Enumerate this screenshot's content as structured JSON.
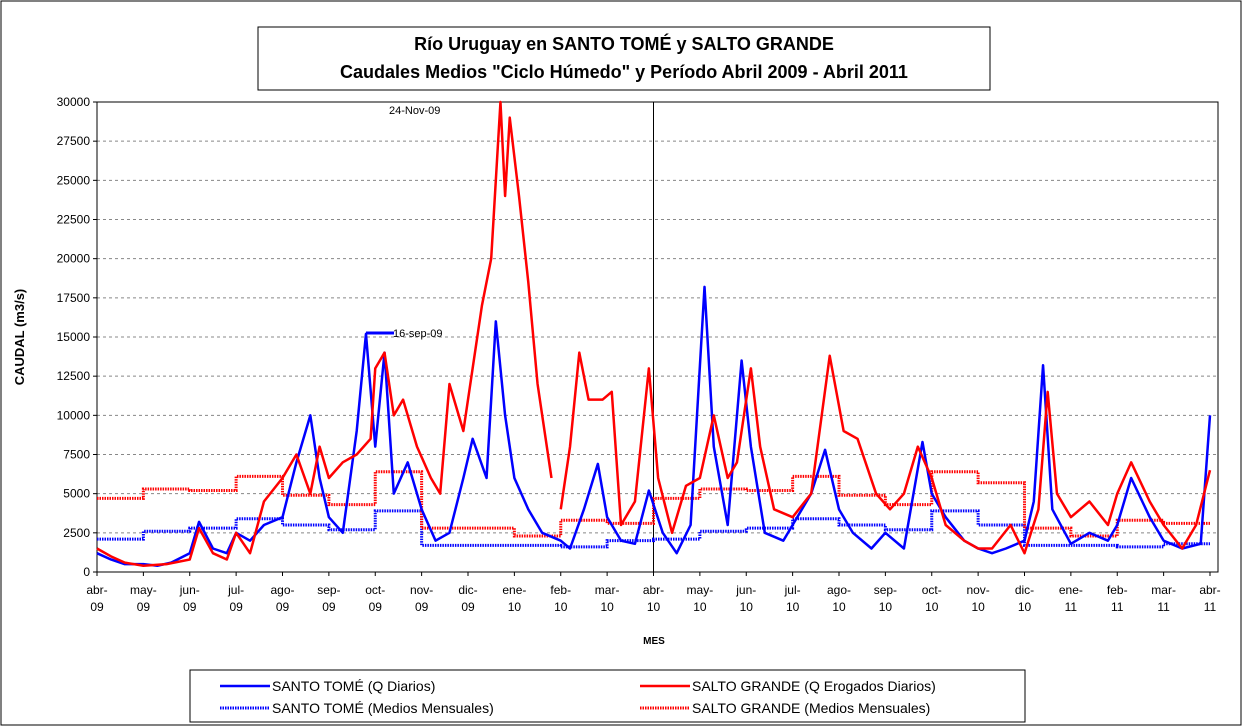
{
  "chart_data": {
    "type": "line",
    "title": "Río Uruguay en SANTO TOMÉ y SALTO GRANDE",
    "subtitle": "Caudales Medios \"Ciclo Húmedo\" y Período Abril 2009 - Abril 2011",
    "y_label": "CAUDAL (m3/s)",
    "x_label": "MES",
    "annotations": [
      "24-Nov-09",
      "16-sep-09"
    ],
    "xlim": [
      0,
      24
    ],
    "xticks": [
      {
        "value": 0,
        "label": "abr-09"
      },
      {
        "value": 1,
        "label": "may-09"
      },
      {
        "value": 2,
        "label": "jun-09"
      },
      {
        "value": 3,
        "label": "jul-09"
      },
      {
        "value": 4,
        "label": "ago-09"
      },
      {
        "value": 5,
        "label": "sep-09"
      },
      {
        "value": 6,
        "label": "oct-09"
      },
      {
        "value": 7,
        "label": "nov-09"
      },
      {
        "value": 8,
        "label": "dic-09"
      },
      {
        "value": 9,
        "label": "ene-10"
      },
      {
        "value": 10,
        "label": "feb-10"
      },
      {
        "value": 11,
        "label": "mar-10"
      },
      {
        "value": 12,
        "label": "abr-10"
      },
      {
        "value": 13,
        "label": "may-10"
      },
      {
        "value": 14,
        "label": "jun-10"
      },
      {
        "value": 15,
        "label": "jul-10"
      },
      {
        "value": 16,
        "label": "ago-10"
      },
      {
        "value": 17,
        "label": "sep-10"
      },
      {
        "value": 18,
        "label": "oct-10"
      },
      {
        "value": 19,
        "label": "nov-10"
      },
      {
        "value": 20,
        "label": "dic-10"
      },
      {
        "value": 21,
        "label": "ene-11"
      },
      {
        "value": 22,
        "label": "feb-11"
      },
      {
        "value": 23,
        "label": "mar-11"
      },
      {
        "value": 24,
        "label": "abr-11"
      }
    ],
    "ylim": [
      0,
      30000
    ],
    "yticks": [
      0,
      2500,
      5000,
      7500,
      10000,
      12500,
      15000,
      17500,
      20000,
      22500,
      25000,
      27500,
      30000
    ],
    "grid": true,
    "series": [
      {
        "name": "SANTO TOMÉ (Q Diarios)",
        "color": "#0000ff",
        "style": "solid",
        "x": [
          0,
          0.3,
          0.6,
          1,
          1.3,
          1.6,
          2,
          2.2,
          2.5,
          2.8,
          3,
          3.3,
          3.6,
          4,
          4.3,
          4.6,
          4.8,
          5,
          5.3,
          5.6,
          5.8,
          6,
          6.2,
          6.4,
          6.7,
          7,
          7.3,
          7.6,
          7.9,
          8.1,
          8.4,
          8.6,
          8.8,
          9,
          9.3,
          9.6,
          10,
          10.2,
          10.5,
          10.8,
          11,
          11.3,
          11.6,
          11.9,
          12.2,
          12.5,
          12.8,
          13.1,
          13.3,
          13.6,
          13.9,
          14.1,
          14.4,
          14.8,
          15.1,
          15.4,
          15.7,
          16,
          16.3,
          16.7,
          17,
          17.4,
          17.8,
          18,
          18.3,
          18.7,
          19,
          19.3,
          19.6,
          20,
          20.2,
          20.4,
          20.6,
          21,
          21.4,
          21.8,
          22,
          22.3,
          22.7,
          23,
          23.4,
          23.8,
          24
        ],
        "values": [
          1200,
          800,
          500,
          500,
          400,
          600,
          1200,
          3200,
          1500,
          1200,
          2500,
          2000,
          3000,
          3500,
          7000,
          10000,
          6000,
          3500,
          2500,
          9000,
          15200,
          8000,
          14000,
          5000,
          7000,
          4000,
          2000,
          2500,
          6000,
          8500,
          6000,
          16000,
          10000,
          6000,
          4000,
          2500,
          2000,
          1500,
          4000,
          6900,
          3500,
          2000,
          1800,
          5200,
          2500,
          1200,
          3000,
          18200,
          8000,
          3000,
          13500,
          8000,
          2500,
          2000,
          3500,
          5000,
          7800,
          4000,
          2500,
          1500,
          2500,
          1500,
          8300,
          5000,
          3500,
          2000,
          1500,
          1200,
          1500,
          2000,
          4500,
          13200,
          4000,
          1800,
          2500,
          2000,
          3000,
          6000,
          3500,
          2000,
          1500,
          1800,
          10000
        ]
      },
      {
        "name": "SALTO GRANDE (Q Erogados Diarios)",
        "color": "#ff0000",
        "style": "solid",
        "x": [
          0,
          0.3,
          0.6,
          1,
          1.5,
          2,
          2.2,
          2.5,
          2.8,
          3,
          3.3,
          3.6,
          4,
          4.3,
          4.6,
          4.8,
          5,
          5.3,
          5.6,
          5.9,
          6,
          6.2,
          6.4,
          6.6,
          6.9,
          7.2,
          7.4,
          7.6,
          7.9,
          8.1,
          8.3,
          8.5,
          8.7,
          8.8,
          8.9,
          9.1,
          9.3,
          9.5,
          9.7,
          9.8,
          9.9,
          10,
          10.2,
          10.4,
          10.6,
          10.9,
          11.1,
          11.3,
          11.6,
          11.9,
          12.1,
          12.4,
          12.7,
          13,
          13.3,
          13.6,
          13.8,
          14.1,
          14.3,
          14.6,
          15,
          15.4,
          15.8,
          16.1,
          16.4,
          16.8,
          17.1,
          17.4,
          17.7,
          18,
          18.3,
          18.7,
          19,
          19.3,
          19.7,
          20,
          20.3,
          20.5,
          20.7,
          21,
          21.4,
          21.8,
          22,
          22.3,
          22.7,
          23,
          23.4,
          23.7,
          24
        ],
        "values": [
          1500,
          1000,
          600,
          400,
          500,
          800,
          2800,
          1200,
          800,
          2500,
          1200,
          4500,
          6000,
          7500,
          5000,
          8000,
          6000,
          7000,
          7500,
          8500,
          13000,
          14000,
          10000,
          11000,
          8000,
          6000,
          5000,
          12000,
          9000,
          13000,
          17000,
          20000,
          30000,
          24000,
          29000,
          24000,
          18500,
          12000,
          8000,
          6000,
          null,
          4000,
          8000,
          14000,
          11000,
          11000,
          11500,
          3000,
          4500,
          13000,
          6000,
          2500,
          5500,
          6000,
          10000,
          6000,
          7000,
          13000,
          8000,
          4000,
          3500,
          5000,
          13800,
          9000,
          8500,
          5000,
          4000,
          5000,
          8000,
          6000,
          3000,
          2000,
          1500,
          1500,
          3000,
          1200,
          4000,
          11500,
          5000,
          3500,
          4500,
          3000,
          5000,
          7000,
          4500,
          3000,
          1500,
          3000,
          6500
        ]
      },
      {
        "name": "SANTO TOMÉ (Medios Mensuales)",
        "color": "#0000ff",
        "style": "dotted",
        "x": [
          0,
          1,
          2,
          3,
          4,
          5,
          6,
          7,
          8,
          9,
          10,
          11,
          12,
          13,
          14,
          15,
          16,
          17,
          18,
          19,
          20,
          21,
          22,
          23
        ],
        "values": [
          2100,
          2600,
          2800,
          3400,
          3000,
          2700,
          3900,
          1700,
          1700,
          1700,
          1600,
          2000,
          2100,
          2600,
          2800,
          3400,
          3000,
          2700,
          3900,
          3000,
          1700,
          1700,
          1600,
          1800
        ]
      },
      {
        "name": "SALTO GRANDE (Medios Mensuales)",
        "color": "#ff0000",
        "style": "dotted",
        "x": [
          0,
          1,
          2,
          3,
          4,
          5,
          6,
          7,
          8,
          9,
          10,
          11,
          12,
          13,
          14,
          15,
          16,
          17,
          18,
          19,
          20,
          21,
          22,
          23
        ],
        "values": [
          4700,
          5300,
          5200,
          6100,
          4900,
          4300,
          6400,
          2800,
          2800,
          2300,
          3300,
          3100,
          4700,
          5300,
          5200,
          6100,
          4900,
          4300,
          6400,
          5700,
          2800,
          2300,
          3300,
          3100
        ]
      }
    ]
  }
}
